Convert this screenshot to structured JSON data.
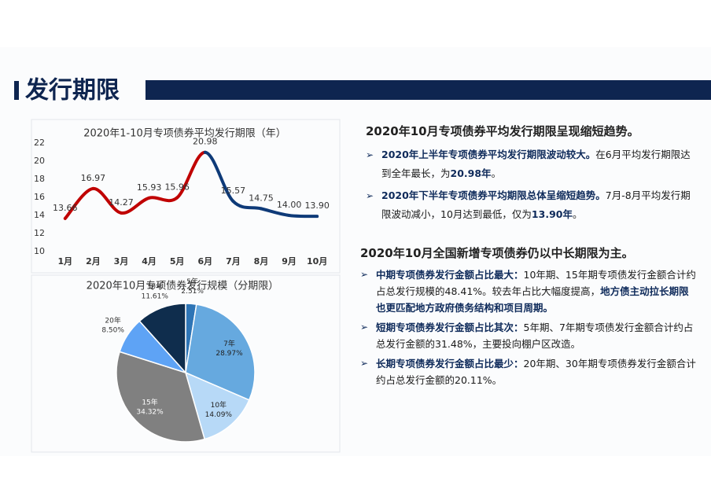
{
  "header": {
    "title": "发行期限"
  },
  "chart_data": [
    {
      "type": "line",
      "title": "2020年1-10月专项债券平均发行期限（年）",
      "categories": [
        "1月",
        "2月",
        "3月",
        "4月",
        "5月",
        "6月",
        "7月",
        "8月",
        "9月",
        "10月"
      ],
      "values": [
        13.66,
        16.97,
        14.27,
        15.93,
        15.96,
        20.98,
        15.57,
        14.75,
        14.0,
        13.9
      ],
      "value_labels": [
        "13.66",
        "16.97",
        "14.27",
        "15.93",
        "15.96",
        "20.98",
        "15.57",
        "14.75",
        "14.00",
        "13.90"
      ],
      "segment_colors": [
        "#c00000",
        "#c00000",
        "#c00000",
        "#c00000",
        "#c00000",
        "#0e3a78",
        "#0e3a78",
        "#0e3a78",
        "#0e3a78"
      ],
      "ylim": [
        10,
        22
      ],
      "yticks": [
        10,
        12,
        14,
        16,
        18,
        20,
        22
      ],
      "grid": false
    },
    {
      "type": "pie",
      "title": "2020年10月专项债券发行规模（分期限）",
      "categories": [
        "5年",
        "7年",
        "10年",
        "15年",
        "20年",
        "30年"
      ],
      "values": [
        2.51,
        28.97,
        14.09,
        34.32,
        8.5,
        11.61
      ],
      "value_labels": [
        "2.51%",
        "28.97%",
        "14.09%",
        "34.32%",
        "8.50%",
        "11.61%"
      ],
      "colors": [
        "#2e75b6",
        "#66a9df",
        "#b7d9f7",
        "#808080",
        "#5ea3f5",
        "#0f2d4d"
      ]
    }
  ],
  "sections": [
    {
      "heading": "2020年10月专项债券平均发行期限呈现缩短趋势。",
      "bullets": [
        [
          {
            "text": "2020年上半年专项债券平均发行期限波动较大。",
            "bold": true
          },
          {
            "text": "在6月平均发行期限达到全年最长，为",
            "bold": false
          },
          {
            "text": "20.98年",
            "bold": true
          },
          {
            "text": "。",
            "bold": false
          }
        ],
        [
          {
            "text": "2020年下半年专项债券平均期限总体呈缩短趋势。",
            "bold": true
          },
          {
            "text": "7月-8月平均发行期限波动减小，10月达到最低，仅为",
            "bold": false
          },
          {
            "text": "13.90年",
            "bold": true
          },
          {
            "text": "。",
            "bold": false
          }
        ]
      ]
    },
    {
      "heading": "2020年10月全国新增专项债券仍以中长期限为主。",
      "bullets": [
        [
          {
            "text": "中期专项债券发行金额占比最大：",
            "bold": true
          },
          {
            "text": "10年期、15年期专项债发行金额合计约占总发行规模的48.41%。较去年占比大幅度提高，",
            "bold": false
          },
          {
            "text": "地方债主动拉长期限也更匹配地方政府债务结构和项目周期。",
            "bold": true
          }
        ],
        [
          {
            "text": "短期专项债券发行金额占比其次：",
            "bold": true
          },
          {
            "text": "5年期、7年期专项债发行金额合计约占总发行金额的31.48%，主要投向棚户区改造。",
            "bold": false
          }
        ],
        [
          {
            "text": "长期专项债券发行金额占比最少：",
            "bold": true
          },
          {
            "text": "20年期、30年期专项债券发行金额合计约占总发行金额的20.11%。",
            "bold": false
          }
        ]
      ]
    }
  ]
}
